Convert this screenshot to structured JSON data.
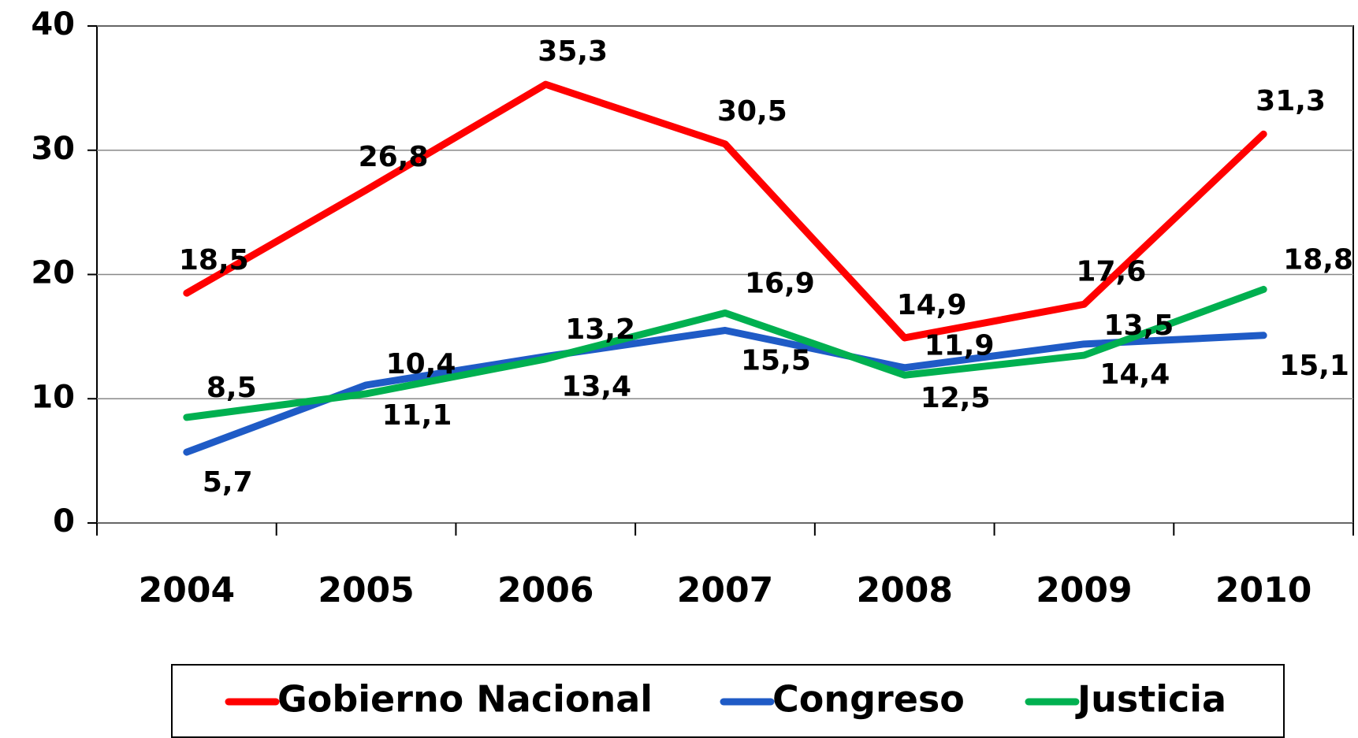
{
  "chart_data": {
    "type": "line",
    "categories": [
      "2004",
      "2005",
      "2006",
      "2007",
      "2008",
      "2009",
      "2010"
    ],
    "series": [
      {
        "name": "Gobierno Nacional",
        "color": "#ff0000",
        "values": [
          18.5,
          26.8,
          35.3,
          30.5,
          14.9,
          17.6,
          31.3
        ],
        "value_labels": [
          "18,5",
          "26,8",
          "35,3",
          "30,5",
          "14,9",
          "17,6",
          "31,3"
        ]
      },
      {
        "name": "Congreso",
        "color": "#1f5bc6",
        "values": [
          5.7,
          11.1,
          13.4,
          15.5,
          12.5,
          14.4,
          15.1
        ],
        "value_labels": [
          "5,7",
          "11,1",
          "13,4",
          "15,5",
          "12,5",
          "14,4",
          "15,1"
        ]
      },
      {
        "name": "Justicia",
        "color": "#00b050",
        "values": [
          8.5,
          10.4,
          13.2,
          16.9,
          11.9,
          13.5,
          18.8
        ],
        "value_labels": [
          "8,5",
          "10,4",
          "13,2",
          "16,9",
          "11,9",
          "13,5",
          "18,8"
        ]
      }
    ],
    "ylim": [
      0,
      40
    ],
    "yticks": [
      0,
      10,
      20,
      30,
      40
    ],
    "grid": true,
    "legend": "bottom"
  }
}
